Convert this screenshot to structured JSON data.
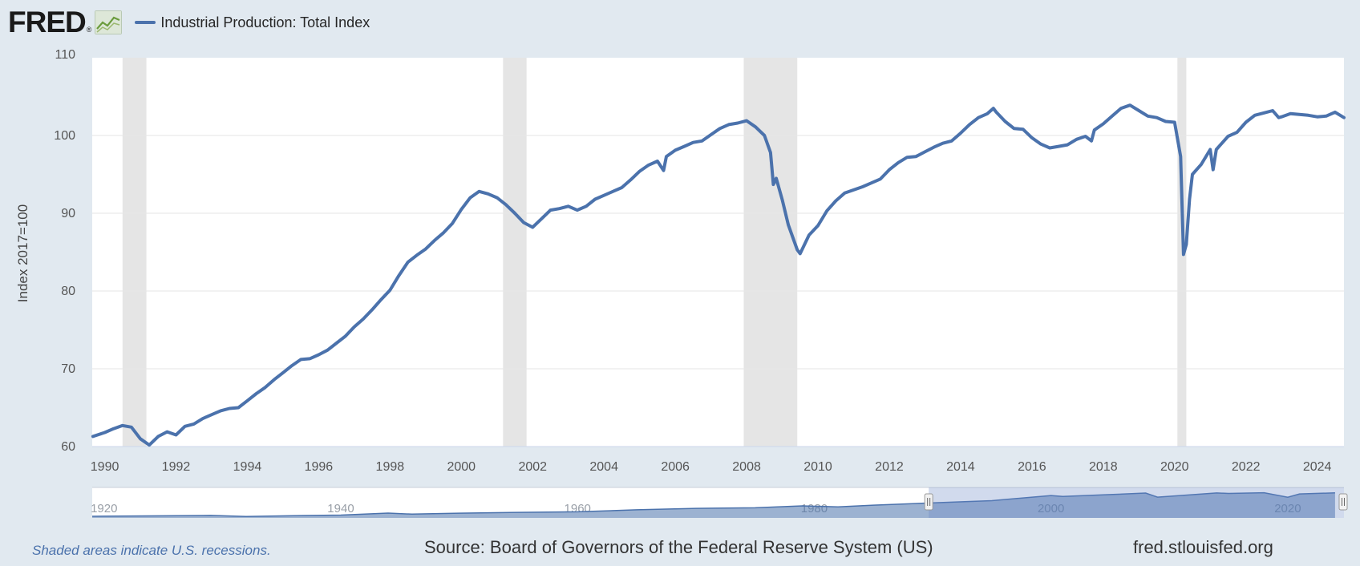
{
  "header": {
    "logo": "FRED",
    "logo_reg": "®",
    "legend_label": "Industrial Production: Total Index",
    "series_color": "#4b72ac"
  },
  "footer": {
    "note": "Shaded areas indicate U.S. recessions.",
    "source": "Source: Board of Governors of the Federal Reserve System (US)",
    "url": "fred.stlouisfed.org"
  },
  "chart_data": {
    "type": "line",
    "title": "",
    "ylabel": "Index 2017=100",
    "xlabel": "",
    "ylim": [
      60,
      110
    ],
    "xlim": [
      1989.65,
      2024.75
    ],
    "y_ticks": [
      60,
      70,
      80,
      90,
      100,
      110
    ],
    "x_ticks": [
      1990,
      1992,
      1994,
      1996,
      1998,
      2000,
      2002,
      2004,
      2006,
      2008,
      2010,
      2012,
      2014,
      2016,
      2018,
      2020,
      2022,
      2024
    ],
    "grid": true,
    "legend_position": "top-left",
    "recessions": [
      [
        1990.5,
        1991.17
      ],
      [
        2001.17,
        2001.83
      ],
      [
        2007.92,
        2009.42
      ],
      [
        2020.08,
        2020.33
      ]
    ],
    "series": [
      {
        "name": "Industrial Production: Total Index",
        "color": "#4b72ac",
        "points": [
          [
            1989.67,
            61.3
          ],
          [
            1990.0,
            61.8
          ],
          [
            1990.25,
            62.3
          ],
          [
            1990.5,
            62.7
          ],
          [
            1990.75,
            62.5
          ],
          [
            1991.0,
            61.0
          ],
          [
            1991.25,
            60.2
          ],
          [
            1991.5,
            61.3
          ],
          [
            1991.75,
            61.9
          ],
          [
            1992.0,
            61.5
          ],
          [
            1992.25,
            62.6
          ],
          [
            1992.5,
            62.9
          ],
          [
            1992.75,
            63.6
          ],
          [
            1993.0,
            64.1
          ],
          [
            1993.25,
            64.6
          ],
          [
            1993.5,
            64.9
          ],
          [
            1993.75,
            65.0
          ],
          [
            1994.0,
            65.9
          ],
          [
            1994.25,
            66.8
          ],
          [
            1994.5,
            67.6
          ],
          [
            1994.75,
            68.6
          ],
          [
            1995.0,
            69.5
          ],
          [
            1995.25,
            70.4
          ],
          [
            1995.5,
            71.2
          ],
          [
            1995.75,
            71.3
          ],
          [
            1996.0,
            71.8
          ],
          [
            1996.25,
            72.4
          ],
          [
            1996.5,
            73.3
          ],
          [
            1996.75,
            74.2
          ],
          [
            1997.0,
            75.4
          ],
          [
            1997.25,
            76.4
          ],
          [
            1997.5,
            77.6
          ],
          [
            1997.75,
            78.9
          ],
          [
            1998.0,
            80.1
          ],
          [
            1998.25,
            82.0
          ],
          [
            1998.5,
            83.7
          ],
          [
            1998.75,
            84.6
          ],
          [
            1999.0,
            85.4
          ],
          [
            1999.25,
            86.5
          ],
          [
            1999.5,
            87.5
          ],
          [
            1999.75,
            88.7
          ],
          [
            2000.0,
            90.5
          ],
          [
            2000.25,
            92.0
          ],
          [
            2000.5,
            92.8
          ],
          [
            2000.75,
            92.5
          ],
          [
            2001.0,
            92.0
          ],
          [
            2001.25,
            91.1
          ],
          [
            2001.5,
            90.0
          ],
          [
            2001.75,
            88.8
          ],
          [
            2002.0,
            88.2
          ],
          [
            2002.25,
            89.3
          ],
          [
            2002.5,
            90.4
          ],
          [
            2002.75,
            90.6
          ],
          [
            2003.0,
            90.9
          ],
          [
            2003.25,
            90.4
          ],
          [
            2003.5,
            90.9
          ],
          [
            2003.75,
            91.8
          ],
          [
            2004.0,
            92.3
          ],
          [
            2004.25,
            92.8
          ],
          [
            2004.5,
            93.3
          ],
          [
            2004.75,
            94.3
          ],
          [
            2005.0,
            95.4
          ],
          [
            2005.25,
            96.2
          ],
          [
            2005.5,
            96.7
          ],
          [
            2005.67,
            95.5
          ],
          [
            2005.75,
            97.3
          ],
          [
            2006.0,
            98.1
          ],
          [
            2006.25,
            98.6
          ],
          [
            2006.5,
            99.1
          ],
          [
            2006.75,
            99.3
          ],
          [
            2007.0,
            100.1
          ],
          [
            2007.25,
            100.9
          ],
          [
            2007.5,
            101.4
          ],
          [
            2007.75,
            101.6
          ],
          [
            2008.0,
            101.9
          ],
          [
            2008.25,
            101.1
          ],
          [
            2008.5,
            100.0
          ],
          [
            2008.67,
            97.8
          ],
          [
            2008.75,
            93.7
          ],
          [
            2008.83,
            94.5
          ],
          [
            2009.0,
            91.7
          ],
          [
            2009.17,
            88.5
          ],
          [
            2009.42,
            85.3
          ],
          [
            2009.5,
            84.8
          ],
          [
            2009.75,
            87.2
          ],
          [
            2010.0,
            88.4
          ],
          [
            2010.25,
            90.3
          ],
          [
            2010.5,
            91.6
          ],
          [
            2010.75,
            92.6
          ],
          [
            2011.0,
            93.0
          ],
          [
            2011.25,
            93.4
          ],
          [
            2011.5,
            93.9
          ],
          [
            2011.75,
            94.4
          ],
          [
            2012.0,
            95.6
          ],
          [
            2012.25,
            96.5
          ],
          [
            2012.5,
            97.2
          ],
          [
            2012.75,
            97.3
          ],
          [
            2013.0,
            97.9
          ],
          [
            2013.25,
            98.5
          ],
          [
            2013.5,
            99.0
          ],
          [
            2013.75,
            99.3
          ],
          [
            2014.0,
            100.3
          ],
          [
            2014.25,
            101.4
          ],
          [
            2014.5,
            102.3
          ],
          [
            2014.75,
            102.8
          ],
          [
            2014.92,
            103.5
          ],
          [
            2015.0,
            103.0
          ],
          [
            2015.25,
            101.8
          ],
          [
            2015.5,
            100.9
          ],
          [
            2015.75,
            100.8
          ],
          [
            2016.0,
            99.7
          ],
          [
            2016.25,
            98.9
          ],
          [
            2016.5,
            98.4
          ],
          [
            2016.75,
            98.6
          ],
          [
            2017.0,
            98.8
          ],
          [
            2017.25,
            99.5
          ],
          [
            2017.5,
            99.9
          ],
          [
            2017.67,
            99.3
          ],
          [
            2017.75,
            100.7
          ],
          [
            2018.0,
            101.5
          ],
          [
            2018.25,
            102.5
          ],
          [
            2018.5,
            103.5
          ],
          [
            2018.75,
            103.9
          ],
          [
            2019.0,
            103.2
          ],
          [
            2019.25,
            102.5
          ],
          [
            2019.5,
            102.3
          ],
          [
            2019.75,
            101.8
          ],
          [
            2020.0,
            101.7
          ],
          [
            2020.17,
            97.3
          ],
          [
            2020.25,
            84.7
          ],
          [
            2020.33,
            86.0
          ],
          [
            2020.42,
            91.8
          ],
          [
            2020.5,
            95.0
          ],
          [
            2020.75,
            96.3
          ],
          [
            2021.0,
            98.2
          ],
          [
            2021.08,
            95.6
          ],
          [
            2021.17,
            98.2
          ],
          [
            2021.5,
            99.9
          ],
          [
            2021.75,
            100.4
          ],
          [
            2022.0,
            101.7
          ],
          [
            2022.25,
            102.6
          ],
          [
            2022.5,
            102.9
          ],
          [
            2022.75,
            103.2
          ],
          [
            2022.92,
            102.3
          ],
          [
            2023.0,
            102.4
          ],
          [
            2023.25,
            102.8
          ],
          [
            2023.5,
            102.7
          ],
          [
            2023.75,
            102.6
          ],
          [
            2024.0,
            102.4
          ],
          [
            2024.25,
            102.5
          ],
          [
            2024.5,
            103.0
          ],
          [
            2024.75,
            102.3
          ]
        ]
      }
    ],
    "navigator": {
      "x_ticks": [
        1920,
        1940,
        1960,
        1980,
        2000,
        2020
      ],
      "range_start": 1919.0,
      "range_end": 2024.75,
      "selected_start": 1989.67,
      "selected_end": 2024.75,
      "series": [
        [
          1919,
          5.1
        ],
        [
          1925,
          6.5
        ],
        [
          1929,
          7.8
        ],
        [
          1932,
          4.3
        ],
        [
          1937,
          7.5
        ],
        [
          1940,
          8.7
        ],
        [
          1944,
          15.0
        ],
        [
          1946,
          11.7
        ],
        [
          1950,
          14.9
        ],
        [
          1955,
          17.2
        ],
        [
          1960,
          19.0
        ],
        [
          1965,
          25.3
        ],
        [
          1970,
          29.7
        ],
        [
          1975,
          31.6
        ],
        [
          1979,
          37.6
        ],
        [
          1982,
          34.6
        ],
        [
          1985,
          39.8
        ],
        [
          1990,
          46.8
        ],
        [
          1995,
          54.0
        ],
        [
          2000,
          69.8
        ],
        [
          2001,
          67.0
        ],
        [
          2005,
          73.0
        ],
        [
          2008,
          77.7
        ],
        [
          2009,
          64.8
        ],
        [
          2014,
          77.9
        ],
        [
          2015,
          76.4
        ],
        [
          2018,
          78.8
        ],
        [
          2020,
          64.6
        ],
        [
          2021,
          75.0
        ],
        [
          2024,
          78.2
        ]
      ]
    }
  }
}
